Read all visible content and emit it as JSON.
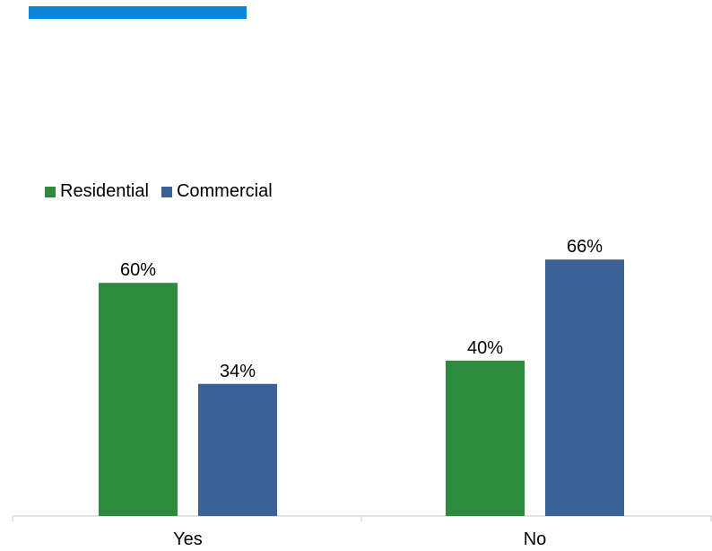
{
  "header": {
    "accent_color": "#0a84d6"
  },
  "chart_data": {
    "type": "bar",
    "categories": [
      "Yes",
      "No"
    ],
    "series": [
      {
        "name": "Residential",
        "values": [
          60,
          40
        ],
        "labels": [
          "60%",
          "40%"
        ],
        "color": "#2e8b3e"
      },
      {
        "name": "Commercial",
        "values": [
          34,
          66
        ],
        "labels": [
          "34%",
          "66%"
        ],
        "color": "#3b6296"
      }
    ],
    "ylim": [
      0,
      100
    ],
    "grid": false,
    "legend_position": "top-left",
    "title": "",
    "xlabel": "",
    "ylabel": ""
  }
}
